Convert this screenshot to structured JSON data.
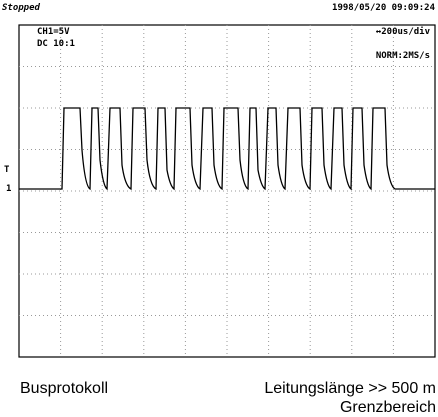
{
  "screen": {
    "status": "Stopped",
    "datetime": "1998/05/20  09:09:24",
    "channel": "CH1=5V",
    "coupling": "DC  10:1",
    "timebase": "↔200us/div",
    "mode": "NORM:2MS/s",
    "ground_marker": "1",
    "trigger_marker": "T"
  },
  "captions": {
    "left": "Busprotokoll",
    "right": "Leitungslänge >> 500 m",
    "right_second": "Grenzbereich"
  }
}
